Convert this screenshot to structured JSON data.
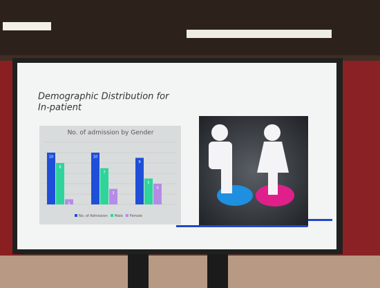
{
  "slide": {
    "title_lines": [
      "Demographic Distribution for",
      "In-patient"
    ]
  },
  "chart_data": {
    "type": "bar",
    "title": "No. of admission by Gender",
    "categories": [
      null,
      null,
      null
    ],
    "series": [
      {
        "name": "No. of Admission",
        "color": "#1f4fd8",
        "values": [
          10,
          10,
          9
        ]
      },
      {
        "name": "Male",
        "color": "#2fd49a",
        "values": [
          8,
          7,
          5
        ]
      },
      {
        "name": "Female",
        "color": "#b58be8",
        "values": [
          1,
          3,
          4
        ]
      }
    ],
    "ylim": [
      0,
      12
    ],
    "yticks": [
      0,
      2,
      4,
      6,
      8,
      10,
      12
    ],
    "grid": true
  }
}
